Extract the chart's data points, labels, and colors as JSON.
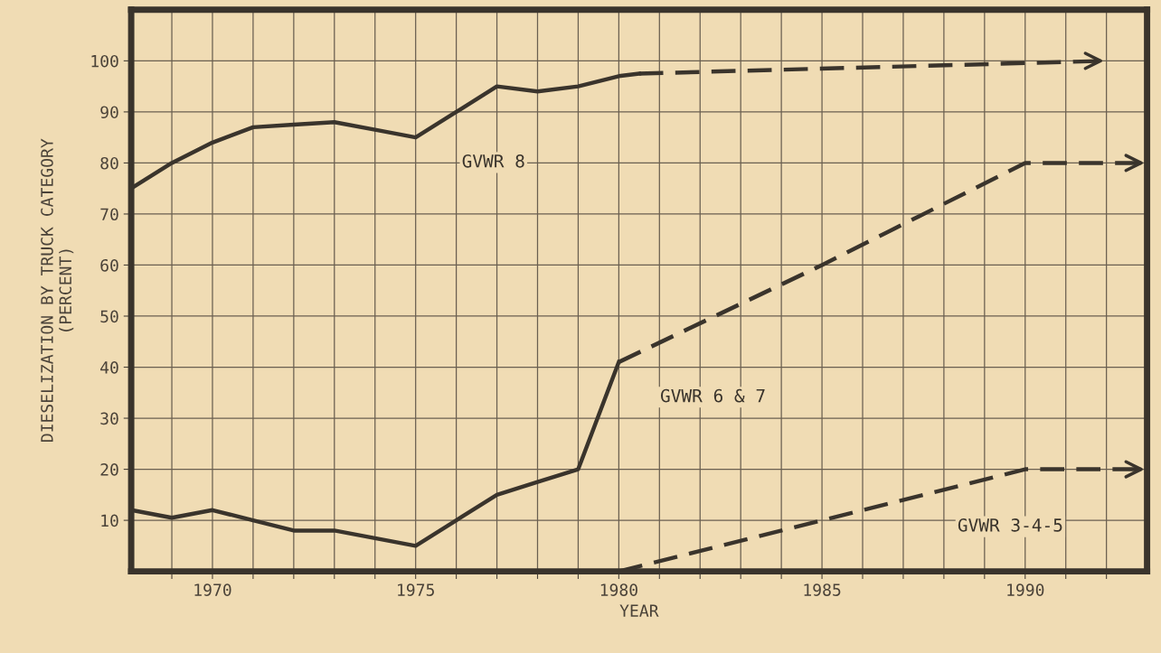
{
  "chart_data": {
    "type": "line",
    "xlabel": "YEAR",
    "ylabel": "DIESELIZATION BY TRUCK CATEGORY\n(PERCENT)",
    "xlim": [
      1968,
      1993
    ],
    "ylim": [
      0,
      110
    ],
    "xticks": [
      {
        "value": 1969,
        "label": null
      },
      1970,
      {
        "value": 1971,
        "label": null
      },
      {
        "value": 1972,
        "label": null
      },
      {
        "value": 1973,
        "label": null
      },
      {
        "value": 1974,
        "label": null
      },
      1975,
      {
        "value": 1976,
        "label": null
      },
      {
        "value": 1977,
        "label": null
      },
      {
        "value": 1978,
        "label": null
      },
      {
        "value": 1979,
        "label": null
      },
      1980,
      {
        "value": 1981,
        "label": null
      },
      {
        "value": 1982,
        "label": null
      },
      {
        "value": 1983,
        "label": null
      },
      {
        "value": 1984,
        "label": null
      },
      1985,
      {
        "value": 1986,
        "label": null
      },
      {
        "value": 1987,
        "label": null
      },
      {
        "value": 1988,
        "label": null
      },
      {
        "value": 1989,
        "label": null
      },
      1990,
      {
        "value": 1991,
        "label": null
      },
      {
        "value": 1992,
        "label": null
      }
    ],
    "yticks": [
      10,
      20,
      30,
      40,
      50,
      60,
      70,
      80,
      90,
      100
    ],
    "grid": true,
    "marker": "none",
    "series": [
      {
        "name": "GVWR 8",
        "color": "#3a342c",
        "line_style": "solid",
        "x": [
          1968,
          1969,
          1970,
          1971,
          1972,
          1973,
          1974,
          1975,
          1976,
          1977,
          1978,
          1979,
          1980,
          1980.5
        ],
        "values": [
          75,
          80,
          84,
          87,
          87.5,
          88,
          86.5,
          85,
          90,
          95,
          94,
          95,
          97,
          97.5
        ]
      },
      {
        "color": "#3a342c",
        "line_style": "dashed",
        "x": [
          1980.5,
          1992
        ],
        "values": [
          97.5,
          100
        ]
      },
      {
        "color": "#3a342c",
        "line_style": "solid",
        "x": [
          1968,
          1969,
          1970,
          1971,
          1972,
          1973,
          1974,
          1975,
          1976,
          1977,
          1978,
          1979,
          1980
        ],
        "values": [
          12,
          10.5,
          12,
          10,
          8,
          8,
          6.5,
          5,
          10,
          15,
          17.5,
          20,
          41
        ]
      },
      {
        "name": "GVWR 6 & 7",
        "color": "#3a342c",
        "line_style": "dashed",
        "x": [
          1980,
          1985,
          1990,
          1993
        ],
        "values": [
          41,
          60,
          80,
          80
        ]
      },
      {
        "name": "GVWR 3-4-5",
        "color": "#3a342c",
        "line_style": "dashed",
        "x": [
          1980,
          1985,
          1990,
          1993
        ],
        "values": [
          0,
          10,
          20,
          20
        ]
      }
    ]
  }
}
